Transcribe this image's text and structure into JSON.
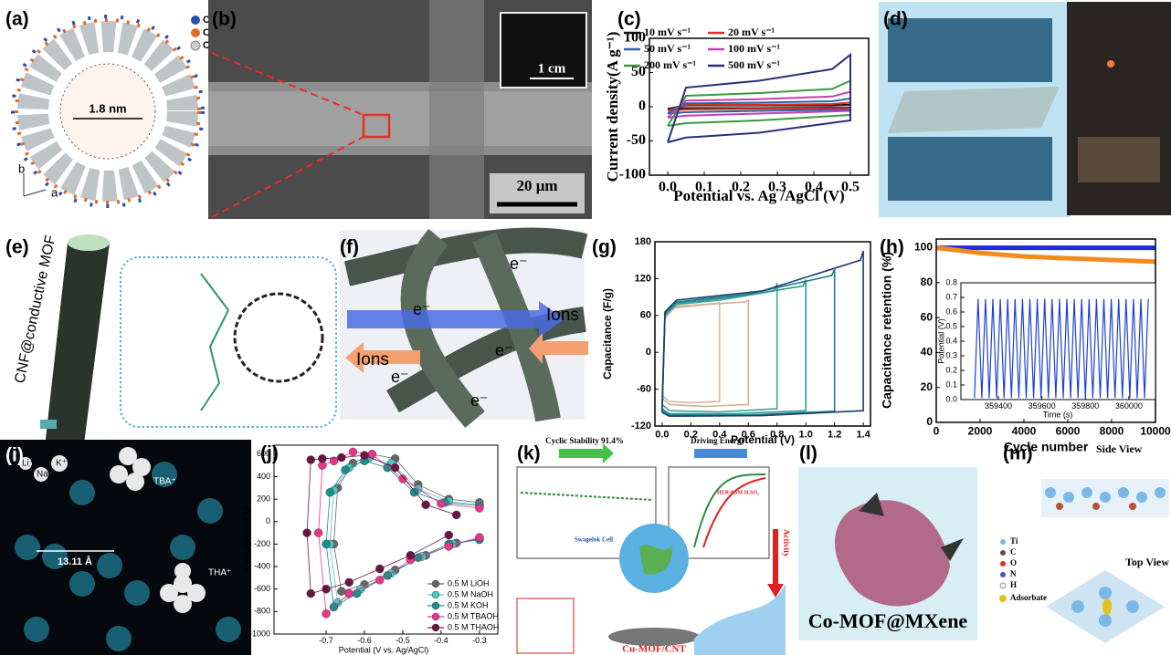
{
  "panels": [
    {
      "label": "(a)",
      "texts": [
        "Cu",
        "O",
        "C",
        "1.8 nm",
        "b",
        "a"
      ]
    },
    {
      "label": "(b)",
      "texts": [
        "1 cm",
        "20 μm"
      ]
    },
    {
      "label": "(c)"
    },
    {
      "label": "(d)"
    },
    {
      "label": "(e)",
      "texts": [
        "CNF@conductive MOF"
      ]
    },
    {
      "label": "(f)",
      "texts": [
        "e⁻",
        "e⁻",
        "e⁻",
        "e⁻",
        "e⁻",
        "Ions",
        "Ions"
      ]
    },
    {
      "label": "(g)"
    },
    {
      "label": "(h)"
    },
    {
      "label": "(i)",
      "texts": [
        "Li⁺",
        "Na⁺",
        "K⁺",
        "TBA⁺",
        "THA⁺",
        "13.11 Å"
      ]
    },
    {
      "label": "(j)"
    },
    {
      "label": "(k)",
      "texts": [
        "Cyclic Stability 91.4%",
        "Driving Energy",
        "Activity",
        "Cu-MOF/CNT",
        "Swagelok Cell",
        "HER-0.5M H₂SO₄"
      ]
    },
    {
      "label": "(l)",
      "texts": [
        "Co-MOF@MXene"
      ]
    },
    {
      "label": "(m)",
      "texts": [
        "Side View",
        "Top View",
        "Ti",
        "C",
        "O",
        "N",
        "H",
        "Adsorbate"
      ]
    }
  ],
  "chart_data": [
    {
      "type": "line",
      "x_label": "Potential vs. Ag /AgCl (V)",
      "y_label": "Current density(A g⁻¹)",
      "xlim": [
        -0.05,
        0.55
      ],
      "ylim": [
        -100,
        100
      ],
      "xticks": [
        {
          "value": 0,
          "label": "0.0"
        },
        0.1,
        0.2,
        0.3,
        0.4,
        0.5
      ],
      "yticks": [
        -100,
        -50,
        0,
        50,
        100
      ],
      "legend": "upper left",
      "series": [
        {
          "name": "10 mV s⁻¹",
          "color": "#111111",
          "x": [
            0,
            0.05,
            0.25,
            0.5,
            0.5,
            0.45,
            0.25,
            0.05,
            0
          ],
          "values": [
            -3,
            -2,
            -2,
            -1,
            3,
            2,
            2,
            2,
            -3
          ]
        },
        {
          "name": "20 mV s⁻¹",
          "color": "#e03020",
          "x": [
            0,
            0.05,
            0.25,
            0.5,
            0.5,
            0.45,
            0.25,
            0.05,
            0
          ],
          "values": [
            -6,
            -4,
            -3,
            -2,
            6,
            4,
            3,
            3,
            -6
          ]
        },
        {
          "name": "50 mV s⁻¹",
          "color": "#2a60b0",
          "x": [
            0,
            0.05,
            0.25,
            0.5,
            0.5,
            0.45,
            0.25,
            0.05,
            0
          ],
          "values": [
            -10,
            -8,
            -6,
            -4,
            12,
            8,
            6,
            5,
            -10
          ]
        },
        {
          "name": "100 mV s⁻¹",
          "color": "#c040b0",
          "x": [
            0,
            0.05,
            0.25,
            0.5,
            0.5,
            0.45,
            0.25,
            0.05,
            0
          ],
          "values": [
            -16,
            -13,
            -10,
            -6,
            22,
            15,
            11,
            9,
            -16
          ]
        },
        {
          "name": "200 mV s⁻¹",
          "color": "#3a9a40",
          "x": [
            0,
            0.05,
            0.25,
            0.5,
            0.5,
            0.45,
            0.25,
            0.05,
            0
          ],
          "values": [
            -28,
            -24,
            -20,
            -12,
            38,
            26,
            20,
            16,
            -28
          ]
        },
        {
          "name": "500 mV s⁻¹",
          "color": "#27307a",
          "x": [
            0,
            0.05,
            0.25,
            0.5,
            0.5,
            0.45,
            0.25,
            0.05,
            0
          ],
          "values": [
            -52,
            -45,
            -38,
            -20,
            76,
            55,
            38,
            28,
            -52
          ]
        }
      ]
    },
    {
      "type": "line",
      "x_label": "Potential (V)",
      "y_label": "Capacitance (F/g)",
      "xlim": [
        -0.05,
        1.45
      ],
      "ylim": [
        -120,
        180
      ],
      "xticks": [
        {
          "value": 0,
          "label": "0.0"
        },
        0.2,
        0.4,
        0.6,
        0.8,
        {
          "value": 1,
          "label": "1.0"
        },
        1.2,
        1.4
      ],
      "yticks": [
        -120,
        -60,
        0,
        60,
        120,
        180
      ],
      "series": [
        {
          "color": "#d9b99b",
          "x": [
            0,
            0.05,
            0.2,
            0.4,
            0.4,
            0.38,
            0.2,
            0.08,
            0.02,
            0
          ],
          "values": [
            -70,
            -80,
            -82,
            -80,
            80,
            80,
            75,
            72,
            55,
            -70
          ]
        },
        {
          "color": "#cdb18f",
          "x": [
            0,
            0.05,
            0.3,
            0.6,
            0.6,
            0.58,
            0.3,
            0.1,
            0.02,
            0
          ],
          "values": [
            -75,
            -85,
            -88,
            -85,
            85,
            82,
            78,
            75,
            58,
            -75
          ]
        },
        {
          "color": "#3aa39c",
          "x": [
            0,
            0.05,
            0.4,
            0.8,
            0.8,
            0.78,
            0.4,
            0.1,
            0.02,
            0
          ],
          "values": [
            -85,
            -95,
            -97,
            -92,
            112,
            100,
            85,
            78,
            60,
            -85
          ]
        },
        {
          "color": "#2a9a8e",
          "x": [
            0,
            0.05,
            0.5,
            1,
            1,
            0.98,
            0.5,
            0.1,
            0.02,
            0
          ],
          "values": [
            -92,
            -100,
            -100,
            -95,
            118,
            108,
            90,
            80,
            62,
            -92
          ]
        },
        {
          "color": "#1c7f86",
          "x": [
            0,
            0.05,
            0.6,
            1.2,
            1.2,
            1.18,
            0.6,
            0.1,
            0.02,
            0
          ],
          "values": [
            -95,
            -102,
            -102,
            -96,
            135,
            125,
            95,
            82,
            64,
            -95
          ]
        },
        {
          "color": "#1f3d73",
          "x": [
            0,
            0.05,
            0.7,
            1.4,
            1.4,
            1.38,
            0.7,
            0.1,
            0.02,
            0
          ],
          "values": [
            -98,
            -104,
            -103,
            -95,
            165,
            150,
            100,
            85,
            66,
            -98
          ]
        }
      ]
    },
    {
      "type": "line",
      "x_label": "Cycle number",
      "y_label": "Capacitance retention (%)",
      "xlim": [
        0,
        10000
      ],
      "ylim": [
        0,
        105
      ],
      "xticks": [
        0,
        2000,
        4000,
        6000,
        8000,
        10000
      ],
      "yticks": [
        0,
        20,
        40,
        60,
        80,
        100
      ],
      "series": [
        {
          "color": "#1f2bd6",
          "x": [
            0,
            1000,
            2000,
            3000,
            4000,
            5000,
            6000,
            7000,
            8000,
            9000,
            10000
          ],
          "values": [
            100,
            100,
            100,
            100,
            100,
            100,
            100,
            100,
            100,
            100,
            100
          ]
        },
        {
          "color": "#f28a1e",
          "x": [
            0,
            1000,
            2000,
            3000,
            4000,
            5000,
            6000,
            7000,
            8000,
            9000,
            10000
          ],
          "values": [
            100,
            98.5,
            97,
            96,
            95,
            94.5,
            94,
            93.5,
            93,
            92.5,
            92
          ]
        }
      ]
    },
    {
      "type": "line",
      "x_label": "Time (s)",
      "y_label": "Potential (V)",
      "xlim": [
        359228,
        360122
      ],
      "ylim": [
        0,
        0.8
      ],
      "xticks": [
        359400,
        359600,
        359800,
        360000
      ],
      "yticks": [
        {
          "value": 0,
          "label": "0.0"
        },
        0.1,
        0.2,
        0.3,
        0.4,
        0.5,
        0.6,
        0.7,
        0.8
      ],
      "series": [
        {
          "color": "#1f3fd6",
          "x": [
            359290,
            359307,
            359324,
            359341,
            359358,
            359375,
            359392,
            359409,
            359426,
            359443,
            359460,
            359477,
            359494,
            359511,
            359528,
            359545,
            359562,
            359579,
            359596,
            359613,
            359630,
            359647,
            359664,
            359681,
            359698,
            359715,
            359732,
            359749,
            359766,
            359783,
            359800,
            359817,
            359834,
            359851,
            359868,
            359885,
            359902,
            359919,
            359936,
            359953,
            359970,
            359987,
            360004,
            360021,
            360038,
            360055,
            360072,
            360089
          ],
          "values": [
            0.01,
            0.69,
            0.01,
            0.69,
            0.01,
            0.69,
            0.01,
            0.69,
            0.01,
            0.69,
            0.01,
            0.69,
            0.01,
            0.69,
            0.01,
            0.69,
            0.01,
            0.69,
            0.01,
            0.69,
            0.01,
            0.69,
            0.01,
            0.69,
            0.01,
            0.69,
            0.01,
            0.69,
            0.01,
            0.69,
            0.01,
            0.69,
            0.01,
            0.69,
            0.01,
            0.69,
            0.01,
            0.69,
            0.01,
            0.69,
            0.01,
            0.69,
            0.01,
            0.69,
            0.01,
            0.69,
            0.01,
            0.69
          ]
        }
      ]
    },
    {
      "type": "line",
      "x_label": "Potential (V vs. Ag/AgCl)",
      "y_label": "Capacitance (F/g)",
      "markers": true,
      "xlim": [
        -0.836,
        -0.252
      ],
      "ylim": [
        -1000,
        680
      ],
      "xticks": [
        -0.7,
        -0.6,
        -0.5,
        -0.4,
        -0.3
      ],
      "yticks": [
        -1000,
        -800,
        -600,
        -400,
        -200,
        0,
        200,
        400,
        600
      ],
      "legend": "lower right",
      "series": [
        {
          "name": "0.5 M LiOH",
          "color": "#666666",
          "x": [
            -0.3,
            -0.38,
            -0.46,
            -0.52,
            -0.58,
            -0.63,
            -0.67,
            -0.68,
            -0.66,
            -0.6,
            -0.52,
            -0.44,
            -0.36,
            -0.3
          ],
          "values": [
            170,
            200,
            330,
            560,
            600,
            520,
            300,
            -200,
            -620,
            -560,
            -430,
            -300,
            -190,
            -150
          ]
        },
        {
          "name": "0.5 M NaOH",
          "color": "#4dc6c6",
          "x": [
            -0.3,
            -0.38,
            -0.46,
            -0.53,
            -0.59,
            -0.64,
            -0.68,
            -0.69,
            -0.67,
            -0.61,
            -0.53,
            -0.45,
            -0.37,
            -0.3
          ],
          "values": [
            150,
            180,
            290,
            520,
            560,
            480,
            280,
            -200,
            -720,
            -600,
            -460,
            -310,
            -200,
            -160
          ]
        },
        {
          "name": "0.5 M KOH",
          "color": "#1b8e8e",
          "x": [
            -0.3,
            -0.39,
            -0.47,
            -0.54,
            -0.6,
            -0.65,
            -0.69,
            -0.7,
            -0.68,
            -0.62,
            -0.54,
            -0.46,
            -0.38,
            -0.3
          ],
          "values": [
            140,
            170,
            260,
            480,
            540,
            460,
            260,
            -200,
            -760,
            -640,
            -480,
            -320,
            -200,
            -160
          ]
        },
        {
          "name": "0.5 M TBAOH",
          "color": "#e8358a",
          "x": [
            -0.3,
            -0.4,
            -0.5,
            -0.58,
            -0.63,
            -0.68,
            -0.71,
            -0.72,
            -0.7,
            -0.64,
            -0.56,
            -0.48,
            -0.38,
            -0.3
          ],
          "values": [
            120,
            160,
            380,
            600,
            620,
            540,
            500,
            -100,
            -820,
            -640,
            -520,
            -340,
            -220,
            -140
          ]
        },
        {
          "name": "0.5 M THAOH",
          "color": "#6b1544",
          "x": [
            -0.36,
            -0.44,
            -0.52,
            -0.6,
            -0.66,
            -0.71,
            -0.74,
            -0.75,
            -0.74,
            -0.7,
            -0.64,
            -0.56,
            -0.48,
            -0.38
          ],
          "values": [
            60,
            150,
            480,
            590,
            570,
            560,
            550,
            -100,
            -640,
            -600,
            -540,
            -420,
            -300,
            -120
          ]
        }
      ]
    }
  ]
}
